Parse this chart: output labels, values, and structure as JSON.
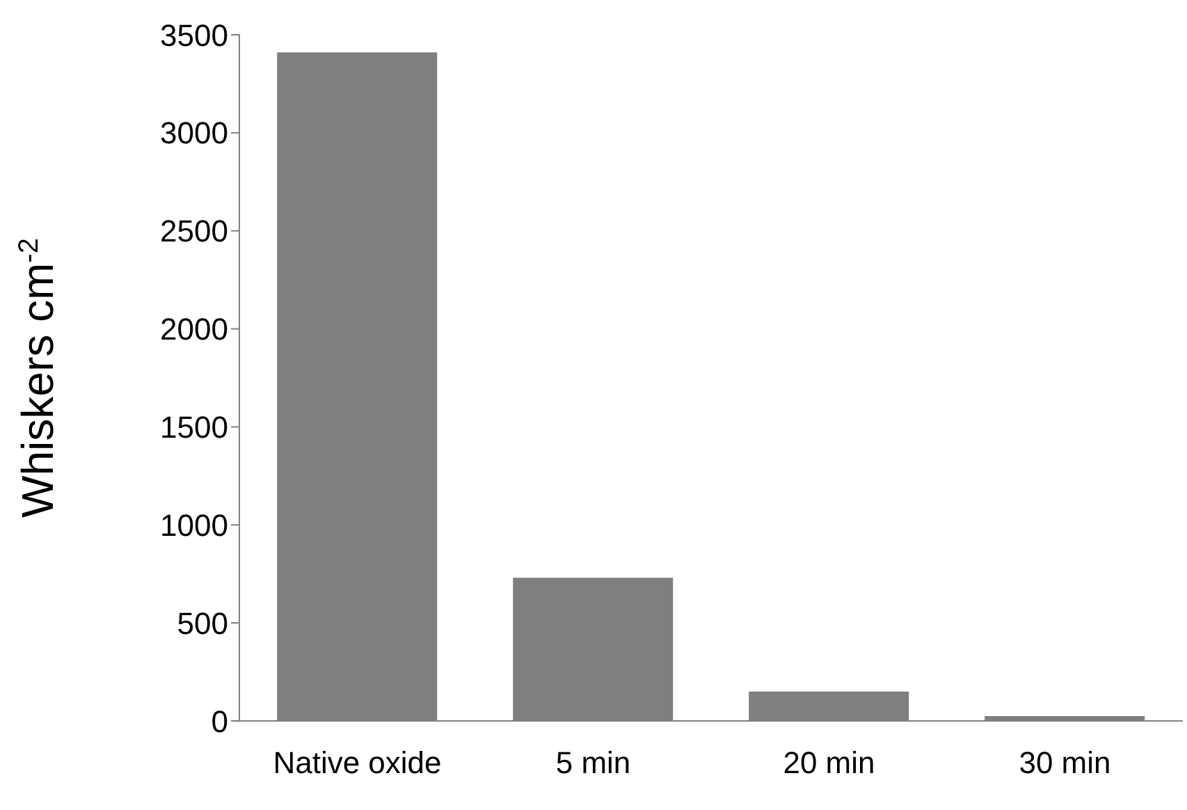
{
  "chart_data": {
    "type": "bar",
    "ylabel": "Whiskers cm$^{-2}$",
    "categories": [
      "Native oxide",
      "5 min",
      "20 min",
      "30 min"
    ],
    "values": [
      3410,
      730,
      150,
      25
    ],
    "color": "#7f7f7f",
    "ylim": [
      0,
      3500
    ],
    "yticks": [
      0,
      500,
      1000,
      1500,
      2000,
      2500,
      3000,
      3500
    ],
    "grid": false,
    "legend": false
  }
}
